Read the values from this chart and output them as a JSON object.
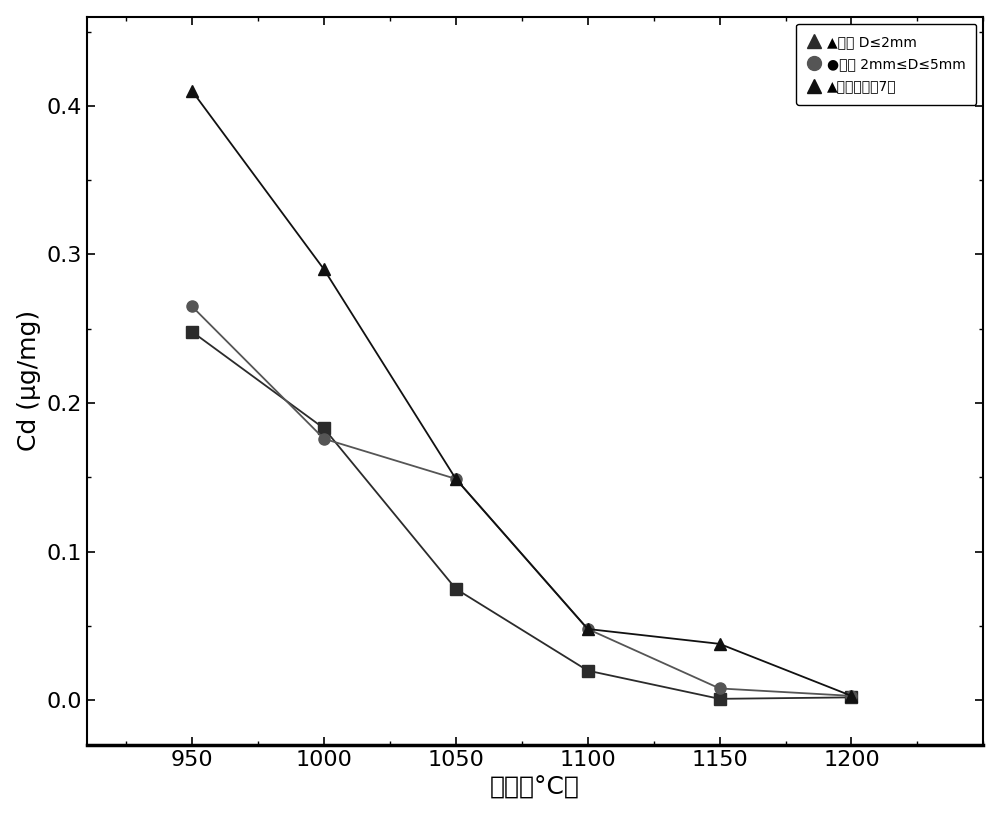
{
  "x": [
    950,
    1000,
    1050,
    1100,
    1150,
    1200
  ],
  "series_d2": {
    "y": [
      0.248,
      0.183,
      0.075,
      0.02,
      0.001,
      0.002
    ],
    "marker": "s",
    "color": "#2b2b2b",
    "markersize": 8,
    "linewidth": 1.3
  },
  "series_d5": {
    "y": [
      0.265,
      0.176,
      0.149,
      0.048,
      0.008,
      0.003
    ],
    "marker": "o",
    "color": "#555555",
    "markersize": 8,
    "linewidth": 1.3
  },
  "series_whole": {
    "y": [
      0.41,
      0.29,
      0.149,
      0.048,
      0.038,
      0.003
    ],
    "marker": "^",
    "color": "#111111",
    "markersize": 9,
    "linewidth": 1.3
  },
  "legend_texts": [
    "▲代表 D≤2mm",
    "●代表 2mm≤D≤5mm",
    "▲代表完整顐7粒"
  ],
  "xlabel": "温度（°C）",
  "ylabel": "Cd (μg/mg)",
  "ylim": [
    -0.03,
    0.46
  ],
  "xlim": [
    910,
    1250
  ],
  "yticks": [
    0.0,
    0.1,
    0.2,
    0.3,
    0.4
  ],
  "xticks": [
    950,
    1000,
    1050,
    1100,
    1150,
    1200
  ],
  "label_fontsize": 18,
  "tick_fontsize": 16,
  "legend_fontsize": 15,
  "background_color": "#ffffff"
}
